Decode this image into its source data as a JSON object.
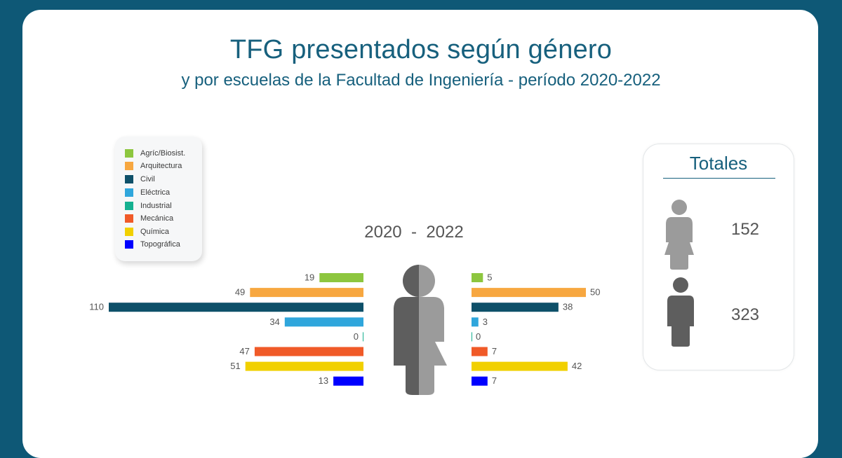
{
  "header": {
    "title": "TFG presentados según género",
    "subtitle": "y por escuelas de la Facultad de Ingeniería - período 2020-2022"
  },
  "period_label": "2020  -  2022",
  "totals": {
    "title": "Totales",
    "female": "152",
    "male": "323"
  },
  "colors": {
    "female_icon": "#9b9b9b",
    "male_icon": "#5e5e5e",
    "accent": "#17607d",
    "background": "#0e5876"
  },
  "chart_data": {
    "type": "bar",
    "categories": [
      "Agríc/Biosist.",
      "Arquitectura",
      "Civil",
      "Eléctrica",
      "Industrial",
      "Mecánica",
      "Química",
      "Topográfica"
    ],
    "category_colors": [
      "#8dc63f",
      "#f7a740",
      "#0e5069",
      "#2fa6dc",
      "#15b090",
      "#f05a28",
      "#f1d000",
      "#0000ff"
    ],
    "series": [
      {
        "values": [
          19,
          49,
          110,
          34,
          0,
          47,
          51,
          13
        ]
      },
      {
        "values": [
          5,
          50,
          38,
          3,
          0,
          7,
          42,
          7
        ]
      }
    ],
    "legend_position": "top-left"
  }
}
